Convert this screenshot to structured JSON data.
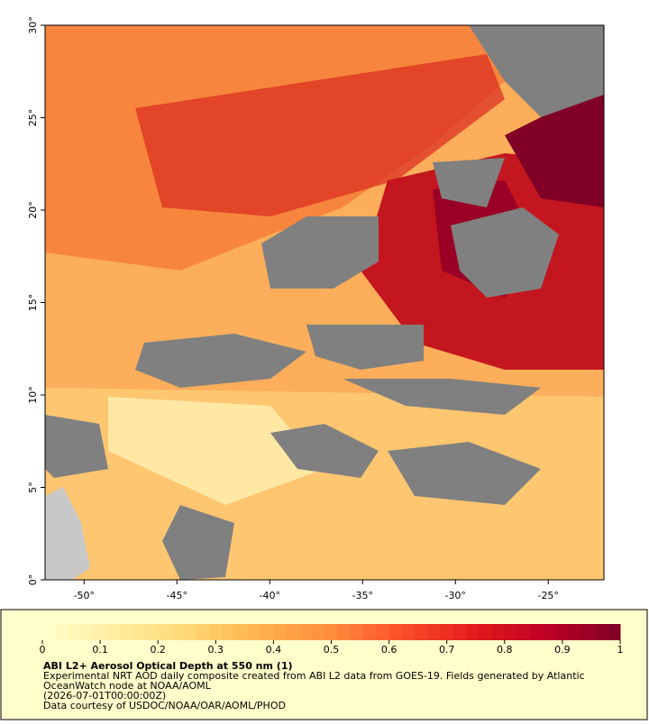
{
  "map": {
    "title": "ABI L2+ Aerosol Optical Depth at 550 nm (1)",
    "description": [
      "Experimental NRT AOD daily composite created from ABI L2 data from GOES-19. Fields generated by Atlantic",
      "OceanWatch node at NOAA/AOML"
    ],
    "time": "(2026-07-01T00:00:00Z)",
    "credit": "Data courtesy of USDOC/NOAA/OAR/AOML/PHOD",
    "xlim": [
      -52.1,
      -22
    ],
    "ylim": [
      0,
      30
    ],
    "xticks": [
      {
        "value": -50,
        "label": "-50°"
      },
      {
        "value": -45,
        "label": "-45°"
      },
      {
        "value": -40,
        "label": "-40°"
      },
      {
        "value": -35,
        "label": "-35°"
      },
      {
        "value": -30,
        "label": "-30°"
      },
      {
        "value": -25,
        "label": "-25°"
      }
    ],
    "yticks": [
      {
        "value": 0,
        "label": "0°"
      },
      {
        "value": 5,
        "label": "5°"
      },
      {
        "value": 10,
        "label": "10°"
      },
      {
        "value": 15,
        "label": "15°"
      },
      {
        "value": 20,
        "label": "20°"
      },
      {
        "value": 25,
        "label": "25°"
      },
      {
        "value": 30,
        "label": "30°"
      }
    ],
    "colorbar": {
      "lim": [
        0,
        1
      ],
      "ticks": [
        0,
        0.1,
        0.2,
        0.3,
        0.4,
        0.5,
        0.6,
        0.7,
        0.8,
        0.9,
        1
      ],
      "colors": [
        "#ffffcc",
        "#ffeda0",
        "#fed976",
        "#feb24c",
        "#fd8d3c",
        "#fc4e2a",
        "#e31a1c",
        "#bd0026",
        "#800026"
      ]
    }
  }
}
